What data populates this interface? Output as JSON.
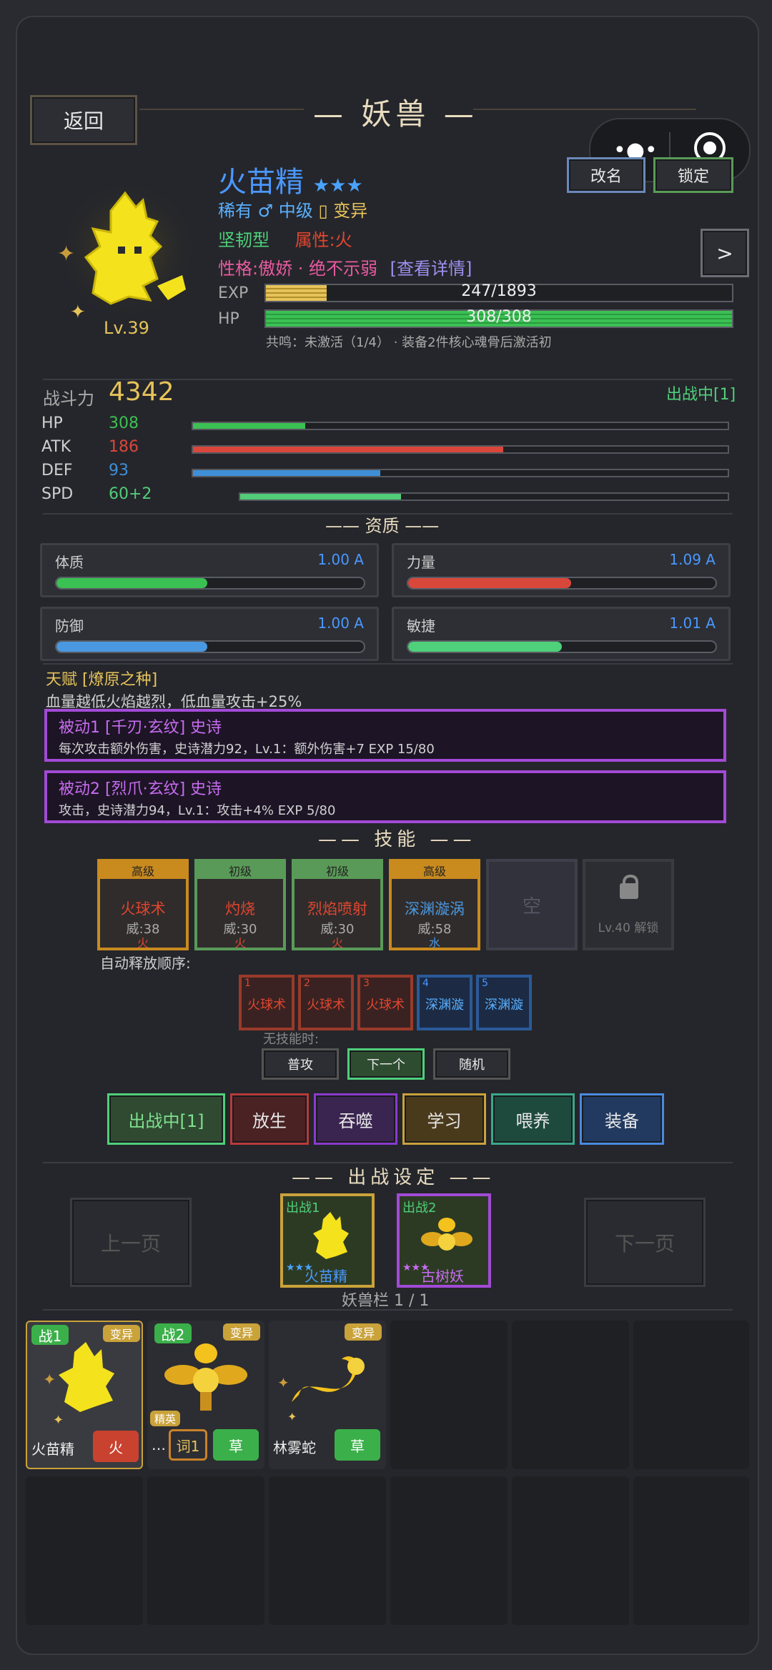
{
  "header": {
    "back_label": "返回",
    "title": "妖兽"
  },
  "pet": {
    "name": "火苗精",
    "stars": "★★★",
    "rarity": "稀有",
    "gender": "♂",
    "grade": "中级",
    "sep": "▯",
    "variant": "变异",
    "type": "坚韧型",
    "attr": "属性:火",
    "personality": "性格:傲娇 · 绝不示弱",
    "details_link": "[查看详情]",
    "level": "Lv.39",
    "exp_label": "EXP",
    "exp_text": "247/1893",
    "exp_ratio": 0.13,
    "hp_label": "HP",
    "hp_text": "308/308",
    "hp_ratio": 1.0,
    "resonance": "共鸣：未激活（1/4） · 装备2件核心魂骨后激活初"
  },
  "actions": {
    "rename": "改名",
    "lock": "锁定",
    "next": ">"
  },
  "stats": {
    "power_label": "战斗力",
    "power_value": "4342",
    "status": "出战中[1]",
    "rows": [
      {
        "label": "HP",
        "value": "308",
        "ratio": 0.21,
        "color": "#3bc153"
      },
      {
        "label": "ATK",
        "value": "186",
        "ratio": 0.58,
        "color": "#d9473b"
      },
      {
        "label": "DEF",
        "value": "93",
        "ratio": 0.35,
        "color": "#3f8fd8"
      },
      {
        "label": "SPD",
        "value": "60+2",
        "ratio": 0.33,
        "color": "#52cc77"
      }
    ]
  },
  "aptitude": {
    "title": "资质",
    "items": [
      {
        "label": "体质",
        "value": "1.00 A",
        "ratio": 0.49,
        "color": "#3bc153"
      },
      {
        "label": "力量",
        "value": "1.09 A",
        "ratio": 0.53,
        "color": "#d9473b"
      },
      {
        "label": "防御",
        "value": "1.00 A",
        "ratio": 0.49,
        "color": "#4a98e0"
      },
      {
        "label": "敏捷",
        "value": "1.01 A",
        "ratio": 0.5,
        "color": "#4fd07a"
      }
    ]
  },
  "talent": {
    "title": "天赋 [燎原之种]",
    "desc": "血量越低火焰越烈，低血量攻击+25%"
  },
  "passives": [
    {
      "title": "被动1 [千刃·玄纹] 史诗",
      "desc": "每次攻击额外伤害，史诗潜力92，Lv.1：额外伤害+7  EXP 15/80"
    },
    {
      "title": "被动2 [烈爪·玄纹] 史诗",
      "desc": "攻击，史诗潜力94，Lv.1：攻击+4%  EXP 5/80"
    }
  ],
  "skills": {
    "title": "技能",
    "cards": [
      {
        "tier": "高级",
        "name": "火球术",
        "power": "威:38",
        "elem": "火",
        "border": "#c98a1e",
        "tierbg": "#c98a1e",
        "elemcolor": "#e0462f"
      },
      {
        "tier": "初级",
        "name": "灼烧",
        "power": "威:30",
        "elem": "火",
        "border": "#5a9a58",
        "tierbg": "#5a9a58",
        "elemcolor": "#e0462f"
      },
      {
        "tier": "初级",
        "name": "烈焰喷射",
        "power": "威:30",
        "elem": "火",
        "border": "#5a9a58",
        "tierbg": "#5a9a58",
        "elemcolor": "#e0462f"
      },
      {
        "tier": "高级",
        "name": "深渊漩涡",
        "power": "威:58",
        "elem": "水",
        "border": "#c98a1e",
        "tierbg": "#c98a1e",
        "elemcolor": "#4a98e0"
      }
    ],
    "empty": "空",
    "locked": "Lv.40 解锁",
    "order_label": "自动释放顺序:",
    "order": [
      {
        "n": "1",
        "name": "火球术",
        "kind": "fire"
      },
      {
        "n": "2",
        "name": "火球术",
        "kind": "fire"
      },
      {
        "n": "3",
        "name": "火球术",
        "kind": "fire"
      },
      {
        "n": "4",
        "name": "深渊漩",
        "kind": "water"
      },
      {
        "n": "5",
        "name": "深渊漩",
        "kind": "water"
      }
    ],
    "noskill_label": "无技能时:",
    "noskill_opts": [
      "普攻",
      "下一个",
      "随机"
    ]
  },
  "buttons": [
    "出战中[1]",
    "放生",
    "吞噬",
    "学习",
    "喂养",
    "装备"
  ],
  "battle": {
    "title": "出战设定",
    "prev": "上一页",
    "next": "下一页",
    "slots": [
      {
        "tag": "出战1",
        "stars": "★★★",
        "name": "火苗精"
      },
      {
        "tag": "出战2",
        "stars": "★★★",
        "name": "古树妖"
      }
    ],
    "roster": "妖兽栏 1 / 1"
  },
  "roster_cards": [
    {
      "battle": "战1",
      "variant": "变异",
      "name": "火苗精",
      "elem": "火"
    },
    {
      "battle": "战2",
      "variant": "变异",
      "elite": "精英",
      "name": "…",
      "word": "词1",
      "elem": "草"
    },
    {
      "variant": "变异",
      "name": "林雾蛇",
      "elem": "草"
    }
  ],
  "colors": {
    "accent": "#e6c35a",
    "name_blue": "#4a98ff",
    "grade_blue": "#5ab0ff",
    "fire": "#e0462f",
    "purple": "#a24ad6"
  }
}
